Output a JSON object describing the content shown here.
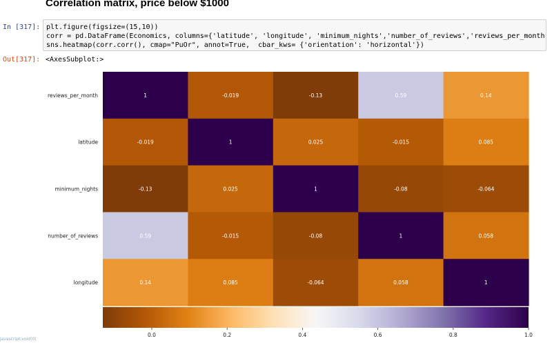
{
  "notebook": {
    "heading": "Correlation matrix, price below $1000",
    "in_prompt": "In [317]:",
    "out_prompt": "Out[317]:",
    "code_lines": [
      "plt.figure(figsize=(15,10))",
      "corr = pd.DataFrame(Economics, columns={'latitude', 'longitude', 'minimum_nights','number_of_reviews','reviews_per_month',})",
      "sns.heatmap(corr.corr(), cmap=\"PuOr\", annot=True,  cbar_kws= {'orientation': 'horizontal'})"
    ],
    "output_text": "<AxesSubplot:>",
    "status_text": "Javascript:void(0)"
  },
  "chart_data": {
    "type": "heatmap",
    "rows": [
      "reviews_per_month",
      "latitude",
      "minimum_nights",
      "number_of_reviews",
      "longitude"
    ],
    "cols": [
      "reviews_per_month",
      "latitude",
      "minimum_nights",
      "number_of_reviews",
      "longitude"
    ],
    "values": [
      [
        1,
        -0.019,
        -0.13,
        0.59,
        0.14
      ],
      [
        -0.019,
        1,
        0.025,
        -0.015,
        0.085
      ],
      [
        -0.13,
        0.025,
        1,
        -0.08,
        -0.064
      ],
      [
        0.59,
        -0.015,
        -0.08,
        1,
        0.058
      ],
      [
        0.14,
        0.085,
        -0.064,
        0.058,
        1
      ]
    ],
    "annotations": [
      [
        "1",
        "-0.019",
        "-0.13",
        "0.59",
        "0.14"
      ],
      [
        "-0.019",
        "1",
        "0.025",
        "-0.015",
        "0.085"
      ],
      [
        "-0.13",
        "0.025",
        "1",
        "-0.08",
        "-0.064"
      ],
      [
        "0.59",
        "-0.015",
        "-0.08",
        "1",
        "0.058"
      ],
      [
        "0.14",
        "0.085",
        "-0.064",
        "0.058",
        "1"
      ]
    ],
    "colormap": "PuOr",
    "vmin": -0.13,
    "vmax": 1.0,
    "colorbar": {
      "orientation": "horizontal",
      "ticks": [
        0.0,
        0.2,
        0.4,
        0.6,
        0.8,
        1.0
      ],
      "tick_labels": [
        "0.0",
        "0.2",
        "0.4",
        "0.6",
        "0.8",
        "1.0"
      ]
    },
    "colors": [
      "#7f3b08",
      "#b35806",
      "#e08214",
      "#fdb863",
      "#fee0b6",
      "#f7f7f7",
      "#d8daeb",
      "#b2abd2",
      "#8073ac",
      "#542788",
      "#2d004b"
    ]
  }
}
